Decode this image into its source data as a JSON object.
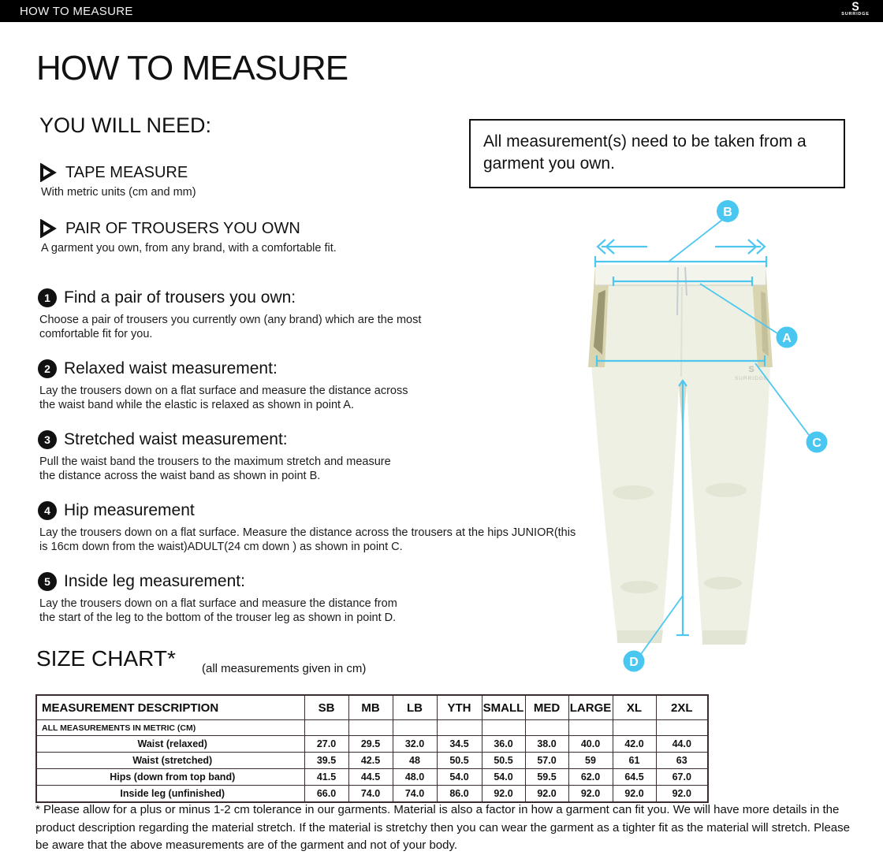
{
  "top_bar": {
    "title": "HOW TO MEASURE",
    "brand": "SURRIDGE",
    "brand_mark": "S"
  },
  "page": {
    "title": "HOW TO MEASURE",
    "you_will_need": {
      "heading": "YOU WILL NEED:",
      "items": [
        {
          "label": "TAPE MEASURE",
          "description": "With metric units (cm and mm)"
        },
        {
          "label": "PAIR OF TROUSERS YOU OWN",
          "description": "A garment you own, from any brand, with a comfortable fit."
        }
      ]
    },
    "note_box": "All measurement(s) need to be taken from a garment you own.",
    "steps": [
      {
        "number": "1",
        "title": "Find a pair of trousers you own:",
        "body": "Choose a pair of trousers you currently own (any brand) which are the most comfortable fit for you."
      },
      {
        "number": "2",
        "title": "Relaxed waist measurement:",
        "body": "Lay the trousers down on a flat surface and measure the distance across the waist band while the elastic is relaxed as shown in point A."
      },
      {
        "number": "3",
        "title": "Stretched waist measurement:",
        "body": "Pull the waist band the trousers to the maximum stretch and measure the distance across the waist band as shown in point B."
      },
      {
        "number": "4",
        "title": "Hip measurement",
        "body": "Lay the trousers down on a flat surface. Measure the distance across the trousers at the hips JUNIOR(this is 16cm down from the waist)ADULT(24 cm down ) as shown in point C."
      },
      {
        "number": "5",
        "title": "Inside leg measurement:",
        "body": "Lay the trousers down on a flat surface and measure the distance from the start of the leg to the bottom of the trouser leg as shown in point D."
      }
    ],
    "diagram": {
      "watermark": "SURRIDGE",
      "markers": [
        {
          "label": "A"
        },
        {
          "label": "B"
        },
        {
          "label": "C"
        },
        {
          "label": "D"
        }
      ]
    },
    "size_chart": {
      "heading": "SIZE CHART*",
      "subheading": "(all measurements given in cm)",
      "table": {
        "type": "table",
        "header_label": "MEASUREMENT DESCRIPTION",
        "columns": [
          "SB",
          "MB",
          "LB",
          "YTH",
          "SMALL",
          "MED",
          "LARGE",
          "XL",
          "2XL"
        ],
        "metric_note": "ALL MEASUREMENTS IN METRIC (CM)",
        "rows": [
          {
            "label": "Waist (relaxed)",
            "values": [
              "27.0",
              "29.5",
              "32.0",
              "34.5",
              "36.0",
              "38.0",
              "40.0",
              "42.0",
              "44.0"
            ]
          },
          {
            "label": "Waist (stretched)",
            "values": [
              "39.5",
              "42.5",
              "48",
              "50.5",
              "50.5",
              "57.0",
              "59",
              "61",
              "63"
            ]
          },
          {
            "label": "Hips (down from top band)",
            "values": [
              "41.5",
              "44.5",
              "48.0",
              "54.0",
              "54.0",
              "59.5",
              "62.0",
              "64.5",
              "67.0"
            ]
          },
          {
            "label": "Inside leg (unfinished)",
            "values": [
              "66.0",
              "74.0",
              "74.0",
              "86.0",
              "92.0",
              "92.0",
              "92.0",
              "92.0",
              "92.0"
            ]
          }
        ]
      }
    },
    "footnote": "* Please allow for a plus or minus 1-2 cm tolerance in our garments. Material is also a factor in how a garment can fit you. We will have more details in the product description regarding the material stretch.  If the material is stretchy then you can wear the garment as a tighter fit as the material will stretch.  Please be aware that the above measurements are of the garment and not of your body."
  },
  "colors": {
    "accent_cyan": "#49c7f1",
    "table_border": "#3b2d2d",
    "trouser_cream": "#eef0e4",
    "trouser_band": "#d9d5b0"
  }
}
